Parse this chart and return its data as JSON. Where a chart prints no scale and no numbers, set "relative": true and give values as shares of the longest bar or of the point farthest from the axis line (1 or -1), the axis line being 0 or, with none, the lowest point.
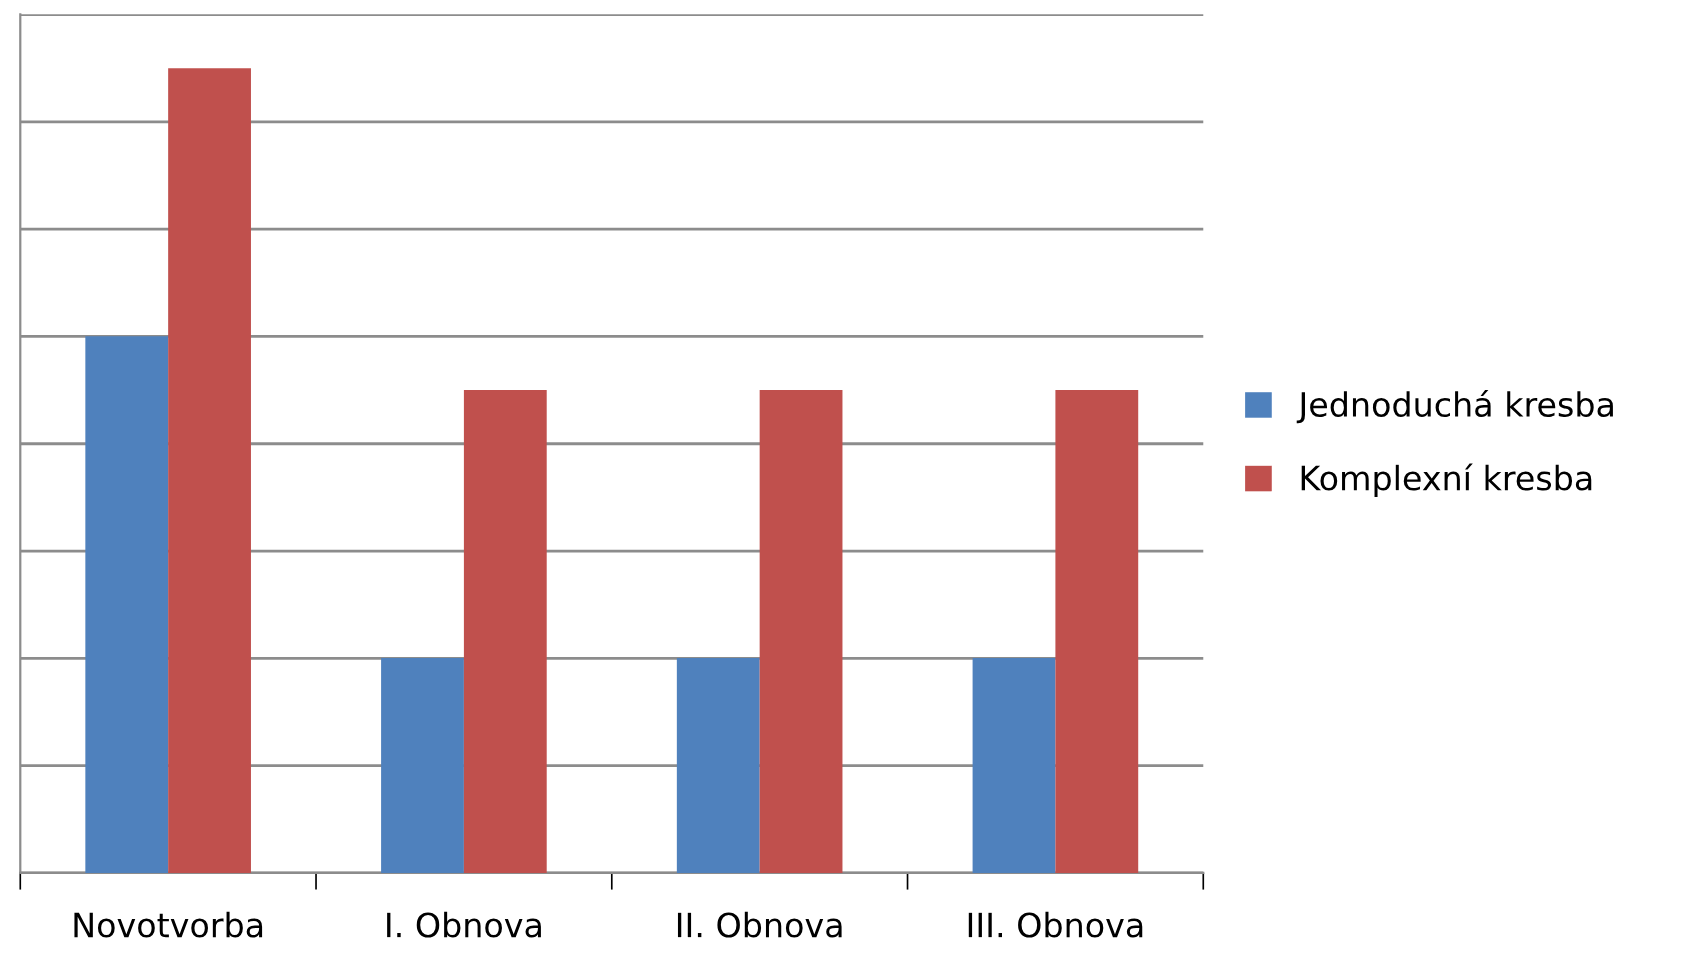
{
  "chart_data": {
    "type": "bar",
    "relative": true,
    "categories": [
      "Novotvorba",
      "I. Obnova",
      "II. Obnova",
      "III. Obnova"
    ],
    "series": [
      {
        "name": "Jednoduchá kresba",
        "color": "#4f81bd",
        "values": [
          0.667,
          0.267,
          0.267,
          0.267
        ]
      },
      {
        "name": "Komplexní kresba",
        "color": "#c0504d",
        "values": [
          1,
          0.6,
          0.6,
          0.6
        ]
      }
    ],
    "grid": "y",
    "legend": "right"
  }
}
